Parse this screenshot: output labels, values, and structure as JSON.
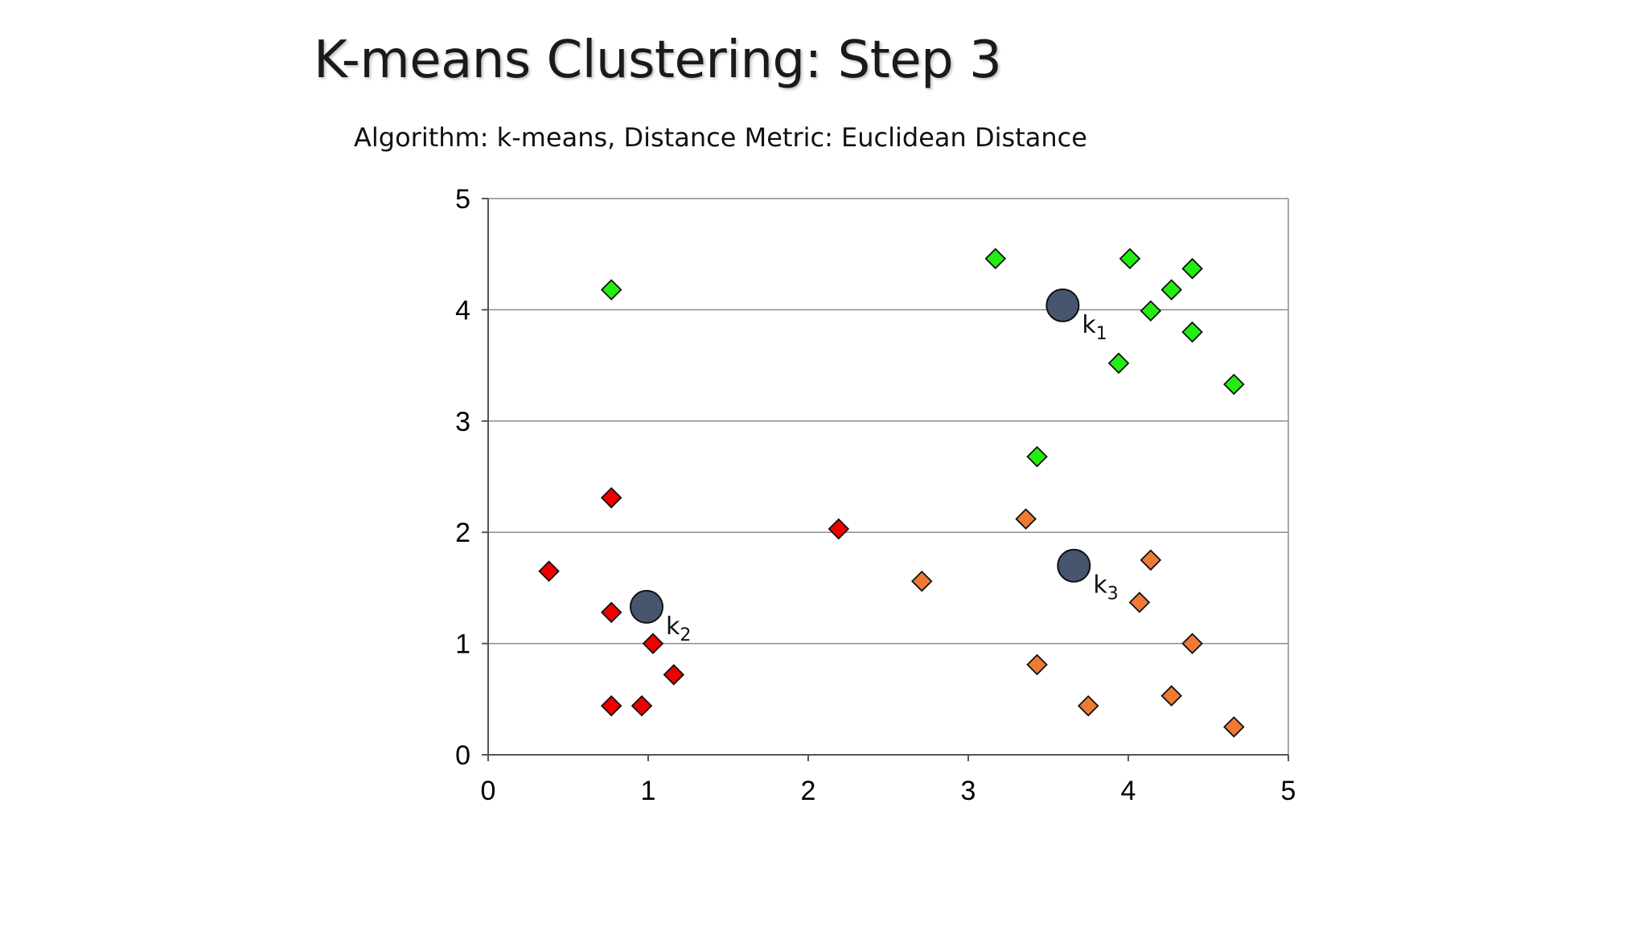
{
  "slide": {
    "title": "K-means Clustering: Step 3",
    "subtitle": "Algorithm: k-means, Distance Metric: Euclidean Distance"
  },
  "chart_data": {
    "type": "scatter",
    "xlim": [
      0,
      5
    ],
    "ylim": [
      0,
      5
    ],
    "x_ticks": [
      0,
      1,
      2,
      3,
      4,
      5
    ],
    "y_ticks": [
      0,
      1,
      2,
      3,
      4,
      5
    ],
    "grid": "horizontal",
    "series": [
      {
        "color": "#22ee11",
        "marker": "diamond",
        "points": [
          {
            "x": 0.77,
            "y": 4.18
          },
          {
            "x": 3.17,
            "y": 4.46
          },
          {
            "x": 4.01,
            "y": 4.46
          },
          {
            "x": 4.4,
            "y": 4.37
          },
          {
            "x": 4.27,
            "y": 4.18
          },
          {
            "x": 4.14,
            "y": 3.99
          },
          {
            "x": 4.4,
            "y": 3.8
          },
          {
            "x": 3.94,
            "y": 3.52
          },
          {
            "x": 4.66,
            "y": 3.33
          },
          {
            "x": 3.43,
            "y": 2.68
          }
        ]
      },
      {
        "color": "#ee0000",
        "marker": "diamond",
        "points": [
          {
            "x": 0.77,
            "y": 2.31
          },
          {
            "x": 2.19,
            "y": 2.03
          },
          {
            "x": 0.38,
            "y": 1.65
          },
          {
            "x": 0.77,
            "y": 1.28
          },
          {
            "x": 1.03,
            "y": 1.0
          },
          {
            "x": 1.16,
            "y": 0.72
          },
          {
            "x": 0.77,
            "y": 0.44
          },
          {
            "x": 0.96,
            "y": 0.44
          }
        ]
      },
      {
        "color": "#ee7a33",
        "marker": "diamond",
        "points": [
          {
            "x": 3.36,
            "y": 2.12
          },
          {
            "x": 4.14,
            "y": 1.75
          },
          {
            "x": 2.71,
            "y": 1.56
          },
          {
            "x": 4.07,
            "y": 1.37
          },
          {
            "x": 4.4,
            "y": 1.0
          },
          {
            "x": 3.43,
            "y": 0.81
          },
          {
            "x": 3.75,
            "y": 0.44
          },
          {
            "x": 4.27,
            "y": 0.53
          },
          {
            "x": 4.66,
            "y": 0.25
          }
        ]
      }
    ],
    "centroids": [
      {
        "label": "k",
        "sub": "1",
        "x": 3.59,
        "y": 4.04
      },
      {
        "label": "k",
        "sub": "2",
        "x": 0.99,
        "y": 1.33
      },
      {
        "label": "k",
        "sub": "3",
        "x": 3.66,
        "y": 1.7
      }
    ],
    "centroid_color": "#47566e"
  }
}
